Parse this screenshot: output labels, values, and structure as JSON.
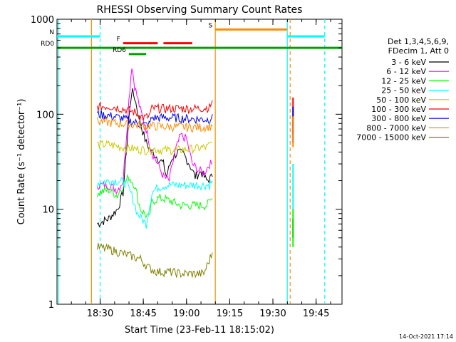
{
  "chart_data": {
    "type": "line",
    "title": "RHESSI Observing Summary Count Rates",
    "xlabel": "Start Time (23-Feb-11 18:15:02)",
    "ylabel": "Count Rate (s⁻¹ detector⁻¹)",
    "xlim": [
      "18:15:02",
      "19:54:00"
    ],
    "ylim": [
      1,
      1000
    ],
    "y_scale": "log",
    "x_ticks": [
      "18:30",
      "18:45",
      "19:00",
      "19:15",
      "19:30",
      "19:45"
    ],
    "y_ticks": [
      "1",
      "10",
      "100",
      "1000"
    ],
    "legend_header": [
      "Det 1,3,4,5,6,9,",
      "FDecim 1, Att 0"
    ],
    "legend_position": "right",
    "footer": "14-Oct-2021 17:14",
    "series": [
      {
        "name": "3 - 6 keV",
        "color": "#000000",
        "points": [
          [
            "18:29",
            7
          ],
          [
            "18:33",
            8
          ],
          [
            "18:36",
            10
          ],
          [
            "18:38",
            15
          ],
          [
            "18:40",
            90
          ],
          [
            "18:41",
            180
          ],
          [
            "18:42",
            150
          ],
          [
            "18:44",
            80
          ],
          [
            "18:46",
            50
          ],
          [
            "18:48",
            40
          ],
          [
            "18:50",
            35
          ],
          [
            "18:52",
            30
          ],
          [
            "18:53",
            22
          ],
          [
            "18:55",
            35
          ],
          [
            "18:57",
            40
          ],
          [
            "18:59",
            38
          ],
          [
            "19:01",
            30
          ],
          [
            "19:03",
            22
          ],
          [
            "19:05",
            25
          ],
          [
            "19:07",
            20
          ],
          [
            "19:09",
            22
          ]
        ]
      },
      {
        "name": "6 - 12 keV",
        "color": "#ff00ff",
        "points": [
          [
            "18:29",
            18
          ],
          [
            "18:33",
            18
          ],
          [
            "18:36",
            16
          ],
          [
            "18:38",
            20
          ],
          [
            "18:40",
            140
          ],
          [
            "18:41",
            330
          ],
          [
            "18:42",
            200
          ],
          [
            "18:44",
            110
          ],
          [
            "18:46",
            70
          ],
          [
            "18:48",
            40
          ],
          [
            "18:50",
            30
          ],
          [
            "18:52",
            22
          ],
          [
            "18:54",
            20
          ],
          [
            "18:56",
            40
          ],
          [
            "18:58",
            60
          ],
          [
            "19:00",
            55
          ],
          [
            "19:02",
            30
          ],
          [
            "19:04",
            26
          ],
          [
            "19:06",
            24
          ],
          [
            "19:08",
            30
          ],
          [
            "19:09",
            30
          ]
        ]
      },
      {
        "name": "12 - 25 keV",
        "color": "#00ff00",
        "points": [
          [
            "18:29",
            15
          ],
          [
            "18:33",
            16
          ],
          [
            "18:36",
            14
          ],
          [
            "18:38",
            18
          ],
          [
            "18:40",
            22
          ],
          [
            "18:42",
            18
          ],
          [
            "18:44",
            10
          ],
          [
            "18:47",
            8
          ],
          [
            "18:48",
            12
          ],
          [
            "18:50",
            13
          ],
          [
            "18:52",
            13
          ],
          [
            "18:55",
            12
          ],
          [
            "18:58",
            11
          ],
          [
            "19:01",
            11
          ],
          [
            "19:04",
            11
          ],
          [
            "19:07",
            11
          ],
          [
            "19:09",
            13
          ]
        ]
      },
      {
        "name": "25 - 50 keV",
        "color": "#00ffff",
        "points": [
          [
            "18:29",
            19
          ],
          [
            "18:33",
            20
          ],
          [
            "18:36",
            20
          ],
          [
            "18:39",
            19
          ],
          [
            "18:41",
            14
          ],
          [
            "18:43",
            9
          ],
          [
            "18:46",
            7
          ],
          [
            "18:48",
            15
          ],
          [
            "18:50",
            17
          ],
          [
            "18:53",
            18
          ],
          [
            "18:56",
            18
          ],
          [
            "18:59",
            18
          ],
          [
            "19:02",
            18
          ],
          [
            "19:05",
            18
          ],
          [
            "19:08",
            18
          ],
          [
            "19:09",
            20
          ]
        ]
      },
      {
        "name": "50 - 100 keV",
        "color": "#c8c800",
        "points": [
          [
            "18:29",
            48
          ],
          [
            "18:33",
            48
          ],
          [
            "18:36",
            46
          ],
          [
            "18:38",
            45
          ],
          [
            "18:40",
            44
          ],
          [
            "18:43",
            43
          ],
          [
            "18:46",
            42
          ],
          [
            "18:49",
            43
          ],
          [
            "18:52",
            42
          ],
          [
            "18:55",
            42
          ],
          [
            "18:58",
            42
          ],
          [
            "19:01",
            43
          ],
          [
            "19:04",
            44
          ],
          [
            "19:07",
            45
          ],
          [
            "19:09",
            50
          ]
        ]
      },
      {
        "name": "100 - 300 keV",
        "color": "#ff0000",
        "points": [
          [
            "18:29",
            120
          ],
          [
            "18:33",
            122
          ],
          [
            "18:36",
            118
          ],
          [
            "18:39",
            112
          ],
          [
            "18:42",
            105
          ],
          [
            "18:45",
            92
          ],
          [
            "18:47",
            95
          ],
          [
            "18:48",
            115
          ],
          [
            "18:52",
            115
          ],
          [
            "18:56",
            115
          ],
          [
            "19:00",
            115
          ],
          [
            "19:04",
            115
          ],
          [
            "19:08",
            118
          ],
          [
            "19:09",
            140
          ]
        ]
      },
      {
        "name": "300 - 800 keV",
        "color": "#0000ff",
        "points": [
          [
            "18:29",
            100
          ],
          [
            "18:33",
            97
          ],
          [
            "18:36",
            93
          ],
          [
            "18:39",
            88
          ],
          [
            "18:42",
            82
          ],
          [
            "18:45",
            77
          ],
          [
            "18:47",
            78
          ],
          [
            "18:48",
            92
          ],
          [
            "18:52",
            92
          ],
          [
            "18:56",
            92
          ],
          [
            "19:00",
            90
          ],
          [
            "19:04",
            89
          ],
          [
            "19:08",
            88
          ],
          [
            "19:09",
            100
          ]
        ]
      },
      {
        "name": "800 - 7000 keV",
        "color": "#ff8c00",
        "points": [
          [
            "18:29",
            85
          ],
          [
            "18:33",
            82
          ],
          [
            "18:37",
            80
          ],
          [
            "18:41",
            78
          ],
          [
            "18:45",
            76
          ],
          [
            "18:49",
            75
          ],
          [
            "18:53",
            74
          ],
          [
            "18:57",
            74
          ],
          [
            "19:01",
            73
          ],
          [
            "19:05",
            73
          ],
          [
            "19:09",
            75
          ]
        ]
      },
      {
        "name": "7000 - 15000 keV",
        "color": "#808000",
        "points": [
          [
            "18:29",
            4
          ],
          [
            "18:33",
            3.8
          ],
          [
            "18:37",
            3.5
          ],
          [
            "18:41",
            3.2
          ],
          [
            "18:44",
            3.0
          ],
          [
            "18:47",
            2.4
          ],
          [
            "18:50",
            2.2
          ],
          [
            "18:54",
            2.2
          ],
          [
            "18:58",
            2.1
          ],
          [
            "19:02",
            2.1
          ],
          [
            "19:06",
            2.1
          ],
          [
            "19:09",
            3.5
          ]
        ]
      }
    ],
    "late_segment": [
      {
        "color": "#ff0000",
        "points": [
          [
            "19:37",
            150
          ],
          [
            "19:37",
            60
          ]
        ]
      },
      {
        "color": "#0000ff",
        "points": [
          [
            "19:37",
            120
          ],
          [
            "19:37",
            50
          ]
        ]
      },
      {
        "color": "#ff8c00",
        "points": [
          [
            "19:37",
            95
          ],
          [
            "19:37",
            45
          ]
        ]
      },
      {
        "color": "#00ffff",
        "points": [
          [
            "19:37",
            30
          ],
          [
            "19:37",
            10
          ]
        ]
      },
      {
        "color": "#000000",
        "points": [
          [
            "19:37",
            8
          ],
          [
            "19:37",
            5
          ]
        ]
      },
      {
        "color": "#00ff00",
        "points": [
          [
            "19:37",
            10
          ],
          [
            "19:37",
            4
          ]
        ]
      }
    ],
    "flag_bars": [
      {
        "label": "N",
        "color": "#00ffff",
        "y": 660,
        "segments": [
          [
            "18:15:02",
            "18:30"
          ],
          [
            "19:35",
            "19:48"
          ]
        ]
      },
      {
        "label": "F",
        "color": "#ff0000",
        "y": 560,
        "segments": [
          [
            "18:38",
            "18:50"
          ],
          [
            "18:52",
            "19:02"
          ]
        ]
      },
      {
        "label": "RD0",
        "color": "#00a000",
        "y": 500,
        "segments": [
          [
            "18:15:02",
            "19:54:00"
          ]
        ]
      },
      {
        "label": "RD6",
        "color": "#00a000",
        "y": 430,
        "segments": [
          [
            "18:40",
            "18:46"
          ]
        ]
      },
      {
        "label": "S",
        "color": "#ff8c00",
        "y": 780,
        "segments": [
          [
            "19:10",
            "19:35"
          ]
        ]
      }
    ],
    "vlines": [
      {
        "time": "18:30",
        "color": "#00ffff",
        "style": "dashed"
      },
      {
        "time": "18:15:30",
        "color": "#00ffff",
        "style": "solid"
      },
      {
        "time": "19:35",
        "color": "#00ffff",
        "style": "solid"
      },
      {
        "time": "19:48",
        "color": "#00ffff",
        "style": "dashed"
      },
      {
        "time": "19:10",
        "color": "#ff8c00",
        "style": "solid"
      },
      {
        "time": "19:36",
        "color": "#ff8c00",
        "style": "dashed"
      },
      {
        "time": "18:27",
        "color": "#ff8c00",
        "style": "solid"
      }
    ]
  }
}
